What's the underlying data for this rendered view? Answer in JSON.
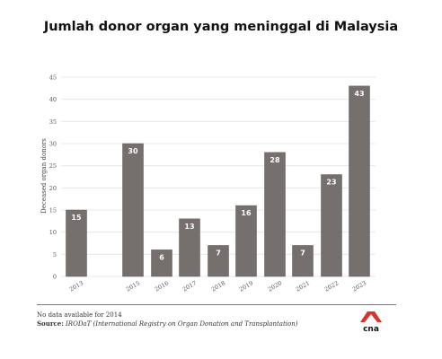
{
  "title": "Jumlah donor organ yang meninggal di Malaysia",
  "notes": {
    "no_data": "No data available for 2014",
    "source_label": "Source:",
    "source_text": "IRODaT (International Registry on Organ Donation and Transplantation)"
  },
  "brand": {
    "name": "cna",
    "logo_color": "#d9312b"
  },
  "colors": {
    "bar": "#756f6e",
    "bar_edge": "#5f5958",
    "grid": "#e3e3e3",
    "axis_text": "#555555"
  },
  "chart_data": {
    "type": "bar",
    "categories": [
      "2013",
      "2015",
      "2016",
      "2017",
      "2018",
      "2019",
      "2020",
      "2021",
      "2022",
      "2023"
    ],
    "values": [
      15,
      30,
      6,
      13,
      7,
      16,
      28,
      7,
      23,
      43
    ],
    "title": "Jumlah donor organ yang meninggal di Malaysia",
    "xlabel": "",
    "ylabel": "Deceased organ donors",
    "ylim": [
      0,
      45
    ],
    "yticks": [
      0,
      5,
      10,
      15,
      20,
      25,
      30,
      35,
      40,
      45
    ],
    "grid": true,
    "data_labels": true
  }
}
